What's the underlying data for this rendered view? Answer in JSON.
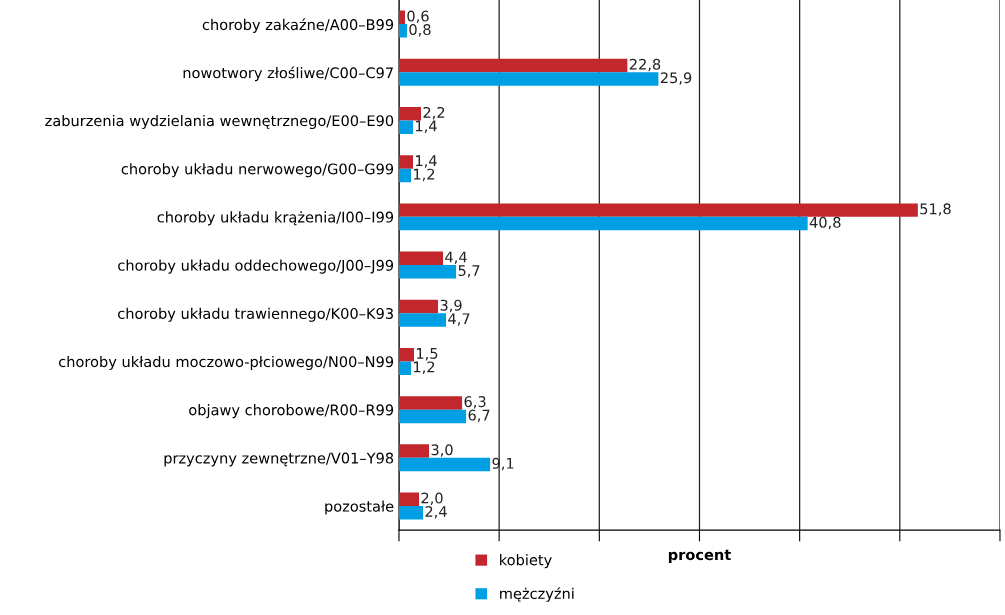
{
  "chart_data": {
    "type": "bar",
    "orientation": "horizontal",
    "xlabel": "procent",
    "categories": [
      "choroby zakaźne/A00–B99",
      "nowotwory złośliwe/C00–C97",
      "zaburzenia wydzielania wewnętrznego/E00–E90",
      "choroby układu nerwowego/G00–G99",
      "choroby układu krążenia/I00–I99",
      "choroby układu oddechowego/J00–J99",
      "choroby układu trawiennego/K00–K93",
      "choroby układu moczowo-płciowego/N00–N99",
      "objawy chorobowe/R00–R99",
      "przyczyny zewnętrzne/V01–Y98",
      "pozostałe"
    ],
    "series": [
      {
        "name": "kobiety",
        "color": "#c1272d",
        "values": [
          0.6,
          22.8,
          2.2,
          1.4,
          51.8,
          4.4,
          3.9,
          1.5,
          6.3,
          3.0,
          2.0
        ],
        "value_labels": [
          "0,6",
          "22,8",
          "2,2",
          "1,4",
          "51,8",
          "4,4",
          "3,9",
          "1,5",
          "6,3",
          "3,0",
          "2,0"
        ]
      },
      {
        "name": "mężczyźni",
        "color": "#009fe3",
        "values": [
          0.8,
          25.9,
          1.4,
          1.2,
          40.8,
          5.7,
          4.7,
          1.2,
          6.7,
          9.1,
          2.4
        ],
        "value_labels": [
          "0,8",
          "25,9",
          "1,4",
          "1,2",
          "40,8",
          "5,7",
          "4,7",
          "1,2",
          "6,7",
          "9,1",
          "2,4"
        ]
      }
    ],
    "xlim": [
      0,
      60
    ],
    "xticks": [
      {
        "value": 0,
        "label": null
      },
      {
        "value": 10,
        "label": null
      },
      {
        "value": 20,
        "label": null
      },
      {
        "value": 30,
        "label": null
      },
      {
        "value": 40,
        "label": null
      },
      {
        "value": 50,
        "label": null
      },
      {
        "value": 60,
        "label": null
      }
    ],
    "grid": "x",
    "legend": "bottom"
  }
}
